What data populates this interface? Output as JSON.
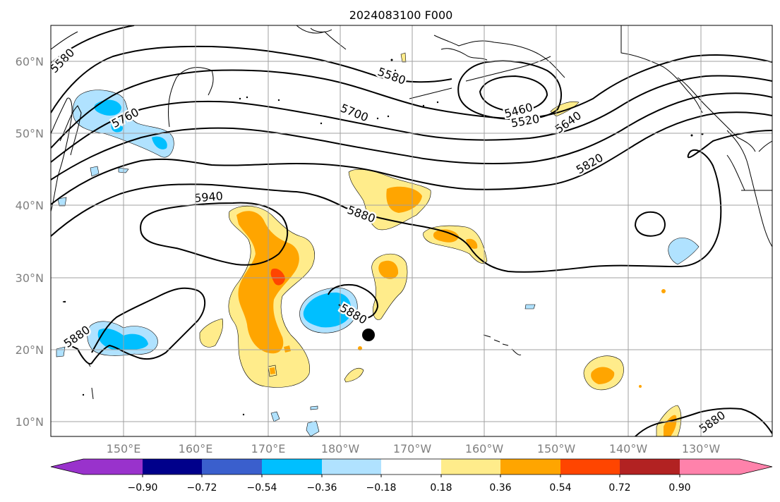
{
  "title": "2024083100 F000",
  "lat_labels": [
    "60°N",
    "50°N",
    "40°N",
    "30°N",
    "20°N",
    "10°N"
  ],
  "lon_labels": [
    "150°E",
    "160°E",
    "170°E",
    "180°W",
    "170°W",
    "160°W",
    "150°W",
    "140°W",
    "130°W"
  ],
  "contour_labels": [
    "5580",
    "5580",
    "5760",
    "5700",
    "5460",
    "5520",
    "5640",
    "5820",
    "5940",
    "5880",
    "5880",
    "5880",
    "5880"
  ],
  "colorbar": {
    "colors": [
      "#9932CC",
      "#00008B",
      "#3A5FCD",
      "#00BFFF",
      "#B0E2FF",
      "#FFFFFF",
      "#FFEC8B",
      "#FFA500",
      "#FF4500",
      "#B22222",
      "#FF82AB"
    ],
    "tick_labels": [
      "−0.90",
      "−0.72",
      "−0.54",
      "−0.36",
      "−0.18",
      "0.18",
      "0.36",
      "0.54",
      "0.72",
      "0.90"
    ]
  },
  "colors": {
    "gridline": "#a0a0a0",
    "coastline": "#000000",
    "contour": "#000000",
    "tick_label": "#808080"
  },
  "marker": "storm-position-dot"
}
